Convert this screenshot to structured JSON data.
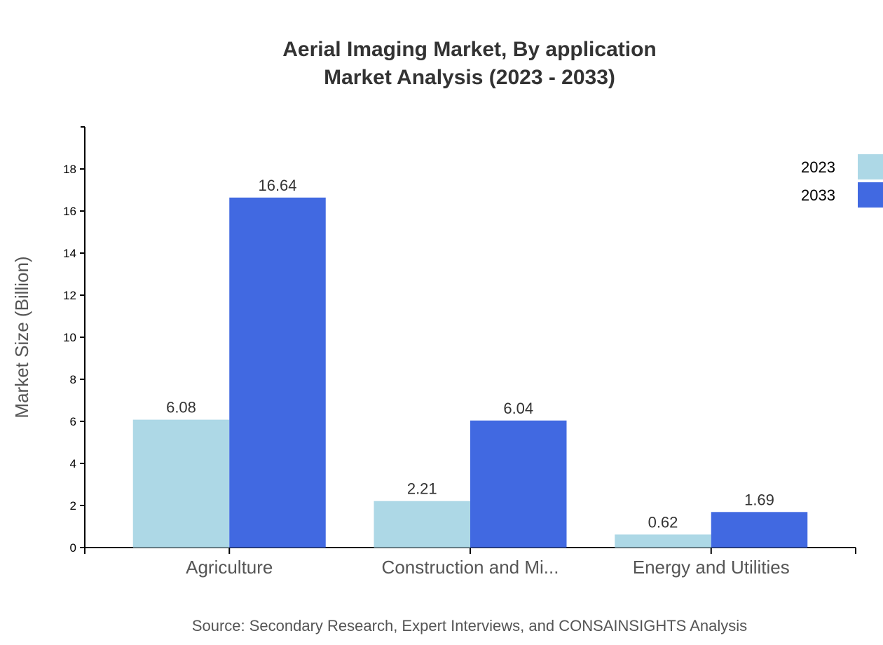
{
  "chart_data": {
    "type": "bar",
    "title": "Aerial Imaging Market, By application",
    "subtitle": "Market Analysis (2023 - 2033)",
    "xlabel": "",
    "ylabel": "Market Size (Billion)",
    "ylim": [
      0,
      20
    ],
    "yticks": [
      0,
      2,
      4,
      6,
      8,
      10,
      12,
      14,
      16,
      18
    ],
    "categories": [
      "Agriculture",
      "Construction and Mi...",
      "Energy and Utilities"
    ],
    "series": [
      {
        "name": "2023",
        "color": "#ADD8E6",
        "values": [
          6.08,
          2.21,
          0.62
        ]
      },
      {
        "name": "2033",
        "color": "#4169E1",
        "values": [
          16.64,
          6.04,
          1.69
        ]
      }
    ],
    "legend_position": "top-right",
    "grid": false,
    "source": "Source: Secondary Research, Expert Interviews, and CONSAINSIGHTS Analysis"
  }
}
